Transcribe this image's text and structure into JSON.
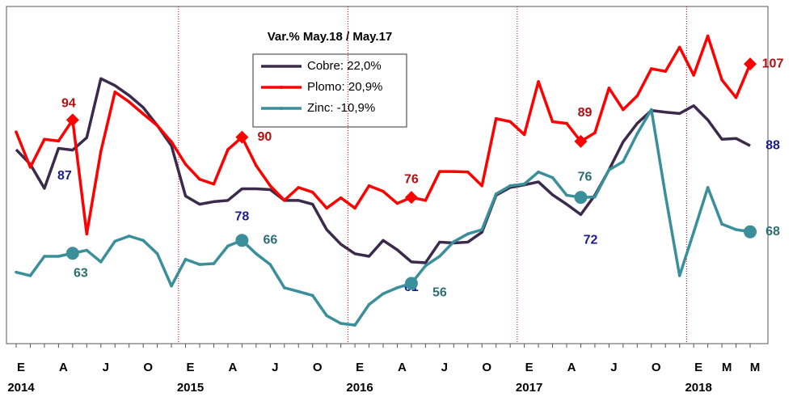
{
  "chart_data": {
    "type": "line",
    "title": "Var.% May.18 / May.17",
    "categories": [
      "E",
      null,
      null,
      "A",
      null,
      null,
      "J",
      null,
      null,
      "O",
      null,
      null,
      "E",
      null,
      null,
      "A",
      null,
      null,
      "J",
      null,
      null,
      "O",
      null,
      null,
      "E",
      null,
      null,
      "A",
      null,
      null,
      "J",
      null,
      null,
      "O",
      null,
      null,
      "E",
      null,
      null,
      "A",
      null,
      null,
      "J",
      null,
      null,
      "O",
      null,
      null,
      "E",
      null,
      "M",
      null,
      "M"
    ],
    "years": [
      "2014",
      null,
      null,
      null,
      null,
      null,
      null,
      null,
      null,
      null,
      null,
      null,
      "2015",
      null,
      null,
      null,
      null,
      null,
      null,
      null,
      null,
      null,
      null,
      null,
      "2016",
      null,
      null,
      null,
      null,
      null,
      null,
      null,
      null,
      null,
      null,
      null,
      "2017",
      null,
      null,
      null,
      null,
      null,
      null,
      null,
      null,
      null,
      null,
      null,
      "2018",
      null,
      null,
      null,
      null
    ],
    "ylim": [
      42,
      120
    ],
    "year_separators": true,
    "labeled_points": [
      4,
      16,
      28,
      40,
      52
    ],
    "series": [
      {
        "name": "Cobre: 22,0%",
        "color": "#3b2a4a",
        "label_color": "#1c1c8e",
        "values": [
          87.1,
          83.7,
          78.1,
          87.4,
          87,
          89.9,
          103.6,
          102,
          99.7,
          96.9,
          92.7,
          88,
          76.3,
          74.4,
          75,
          75.3,
          78,
          78,
          77.8,
          75.3,
          75.3,
          74.4,
          68.5,
          65.1,
          62.9,
          62.3,
          66,
          63.8,
          61,
          60.8,
          65.6,
          65.4,
          65.6,
          67.9,
          76.5,
          78.3,
          78.9,
          79.6,
          76.6,
          74.4,
          72,
          76.5,
          82.4,
          88.9,
          93.2,
          96.2,
          95.8,
          95.5,
          97.3,
          94,
          89.5,
          89.7,
          88
        ]
      },
      {
        "name": "Plomo: 20,9%",
        "color": "#ff0000",
        "label_color": "#b01010",
        "marker": "diamond",
        "values": [
          91.2,
          83,
          89.5,
          89.1,
          94,
          67.5,
          86.7,
          100.5,
          98.2,
          95.4,
          92.7,
          88.9,
          83.7,
          80.2,
          79.1,
          87.1,
          90,
          83.4,
          78.7,
          75.3,
          78.3,
          77.2,
          73.5,
          75.9,
          73.5,
          78.7,
          77.4,
          74.6,
          76,
          75.3,
          82,
          82,
          81.9,
          78.7,
          94.3,
          93.6,
          90.6,
          102.9,
          93.6,
          93.2,
          89,
          91,
          101.4,
          96.4,
          99.6,
          105.9,
          105.3,
          110.9,
          104.4,
          113.5,
          103.3,
          99.2,
          107
        ]
      },
      {
        "name": "Zinc: -10,9%",
        "color": "#3a8f9a",
        "label_color": "#2f6c74",
        "marker": "circle",
        "values": [
          58.6,
          57.8,
          62.3,
          62.3,
          63,
          63.7,
          61,
          65.8,
          67,
          66,
          62.9,
          55.4,
          61.6,
          60.4,
          60.6,
          64.7,
          66,
          62.9,
          60.4,
          55,
          54.1,
          53.2,
          48.5,
          46.7,
          46.3,
          51.1,
          53.6,
          55,
          56,
          60.1,
          62.3,
          65.7,
          67.5,
          68.5,
          76.8,
          78.7,
          79.1,
          81.9,
          80.6,
          76.5,
          76,
          76.1,
          82.4,
          84.3,
          90.8,
          96.4,
          76.5,
          57.8,
          67.9,
          78.3,
          69.8,
          68.5,
          68
        ]
      }
    ]
  }
}
